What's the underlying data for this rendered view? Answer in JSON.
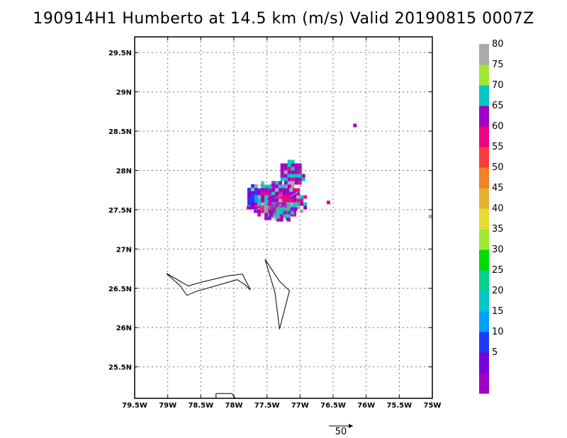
{
  "title": "190914H1 Humberto at 14.5 km (m/s) Valid 20190815 0007Z",
  "map": {
    "lon_range": [
      -79.5,
      -75.0
    ],
    "lat_range": [
      25.1,
      29.7
    ],
    "x_ticks": [
      {
        "value": -79.5,
        "label": "79.5W"
      },
      {
        "value": -79.0,
        "label": "79W"
      },
      {
        "value": -78.5,
        "label": "78.5W"
      },
      {
        "value": -78.0,
        "label": "78W"
      },
      {
        "value": -77.5,
        "label": "77.5W"
      },
      {
        "value": -77.0,
        "label": "77W"
      },
      {
        "value": -76.5,
        "label": "76.5W"
      },
      {
        "value": -76.0,
        "label": "76W"
      },
      {
        "value": -75.5,
        "label": "75.5W"
      },
      {
        "value": -75.0,
        "label": "75W"
      }
    ],
    "y_ticks": [
      {
        "value": 25.5,
        "label": "25.5N"
      },
      {
        "value": 26.0,
        "label": "26N"
      },
      {
        "value": 26.5,
        "label": "26.5N"
      },
      {
        "value": 27.0,
        "label": "27N"
      },
      {
        "value": 27.5,
        "label": "27.5N"
      },
      {
        "value": 28.0,
        "label": "28N"
      },
      {
        "value": 28.5,
        "label": "28.5N"
      },
      {
        "value": 29.0,
        "label": "29N"
      },
      {
        "value": 29.5,
        "label": "29.5N"
      }
    ],
    "grid": true,
    "coastlines": [
      [
        [
          -79.02,
          26.69
        ],
        [
          -78.81,
          26.53
        ],
        [
          -78.71,
          26.41
        ],
        [
          -78.57,
          26.46
        ],
        [
          -77.95,
          26.61
        ],
        [
          -77.84,
          26.55
        ],
        [
          -77.75,
          26.48
        ],
        [
          -77.87,
          26.68
        ],
        [
          -78.08,
          26.66
        ],
        [
          -78.48,
          26.58
        ],
        [
          -78.69,
          26.53
        ],
        [
          -79.02,
          26.69
        ]
      ],
      [
        [
          -77.53,
          26.87
        ],
        [
          -77.31,
          26.59
        ],
        [
          -77.16,
          26.47
        ],
        [
          -77.31,
          25.98
        ],
        [
          -77.38,
          26.45
        ],
        [
          -77.53,
          26.87
        ]
      ],
      [
        [
          -78.27,
          25.1
        ],
        [
          -78.27,
          25.16
        ],
        [
          -78.03,
          25.16
        ],
        [
          -77.98,
          25.1
        ]
      ]
    ],
    "echo_clusters": [
      {
        "lon": -77.38,
        "lat": 27.65,
        "rx": 0.48,
        "ry": 0.26,
        "speed": 67
      },
      {
        "lon": -77.15,
        "lat": 27.98,
        "rx": 0.2,
        "ry": 0.2,
        "speed": 69
      },
      {
        "lon": -77.75,
        "lat": 27.72,
        "rx": 0.1,
        "ry": 0.15,
        "speed": 12
      },
      {
        "lon": -77.3,
        "lat": 27.5,
        "rx": 0.22,
        "ry": 0.12,
        "speed": 70
      },
      {
        "lon": -76.2,
        "lat": 28.6,
        "rx": 0.05,
        "ry": 0.04,
        "speed": 67
      },
      {
        "lon": -76.62,
        "lat": 27.62,
        "rx": 0.03,
        "ry": 0.04,
        "speed": 67
      },
      {
        "lon": -75.07,
        "lat": 27.44,
        "rx": 0.04,
        "ry": 0.04,
        "speed": 67
      }
    ]
  },
  "colorbar": {
    "levels": [
      {
        "label": "",
        "color": "#a000c8"
      },
      {
        "label": "5",
        "color": "#7800dc"
      },
      {
        "label": "10",
        "color": "#1e3cff"
      },
      {
        "label": "15",
        "color": "#00a0ff"
      },
      {
        "label": "20",
        "color": "#00c8c8"
      },
      {
        "label": "25",
        "color": "#00d28c"
      },
      {
        "label": "30",
        "color": "#00dc00"
      },
      {
        "label": "35",
        "color": "#a0e632"
      },
      {
        "label": "40",
        "color": "#e6dc32"
      },
      {
        "label": "45",
        "color": "#e6af2d"
      },
      {
        "label": "50",
        "color": "#f08228"
      },
      {
        "label": "55",
        "color": "#fa3c3c"
      },
      {
        "label": "60",
        "color": "#f00082"
      },
      {
        "label": "65",
        "color": "#a000c8"
      },
      {
        "label": "70",
        "color": "#00c8c8"
      },
      {
        "label": "75",
        "color": "#a0e632"
      },
      {
        "label": "80",
        "color": "#aaaaaa"
      }
    ]
  },
  "reference_vector": {
    "label": "50"
  }
}
